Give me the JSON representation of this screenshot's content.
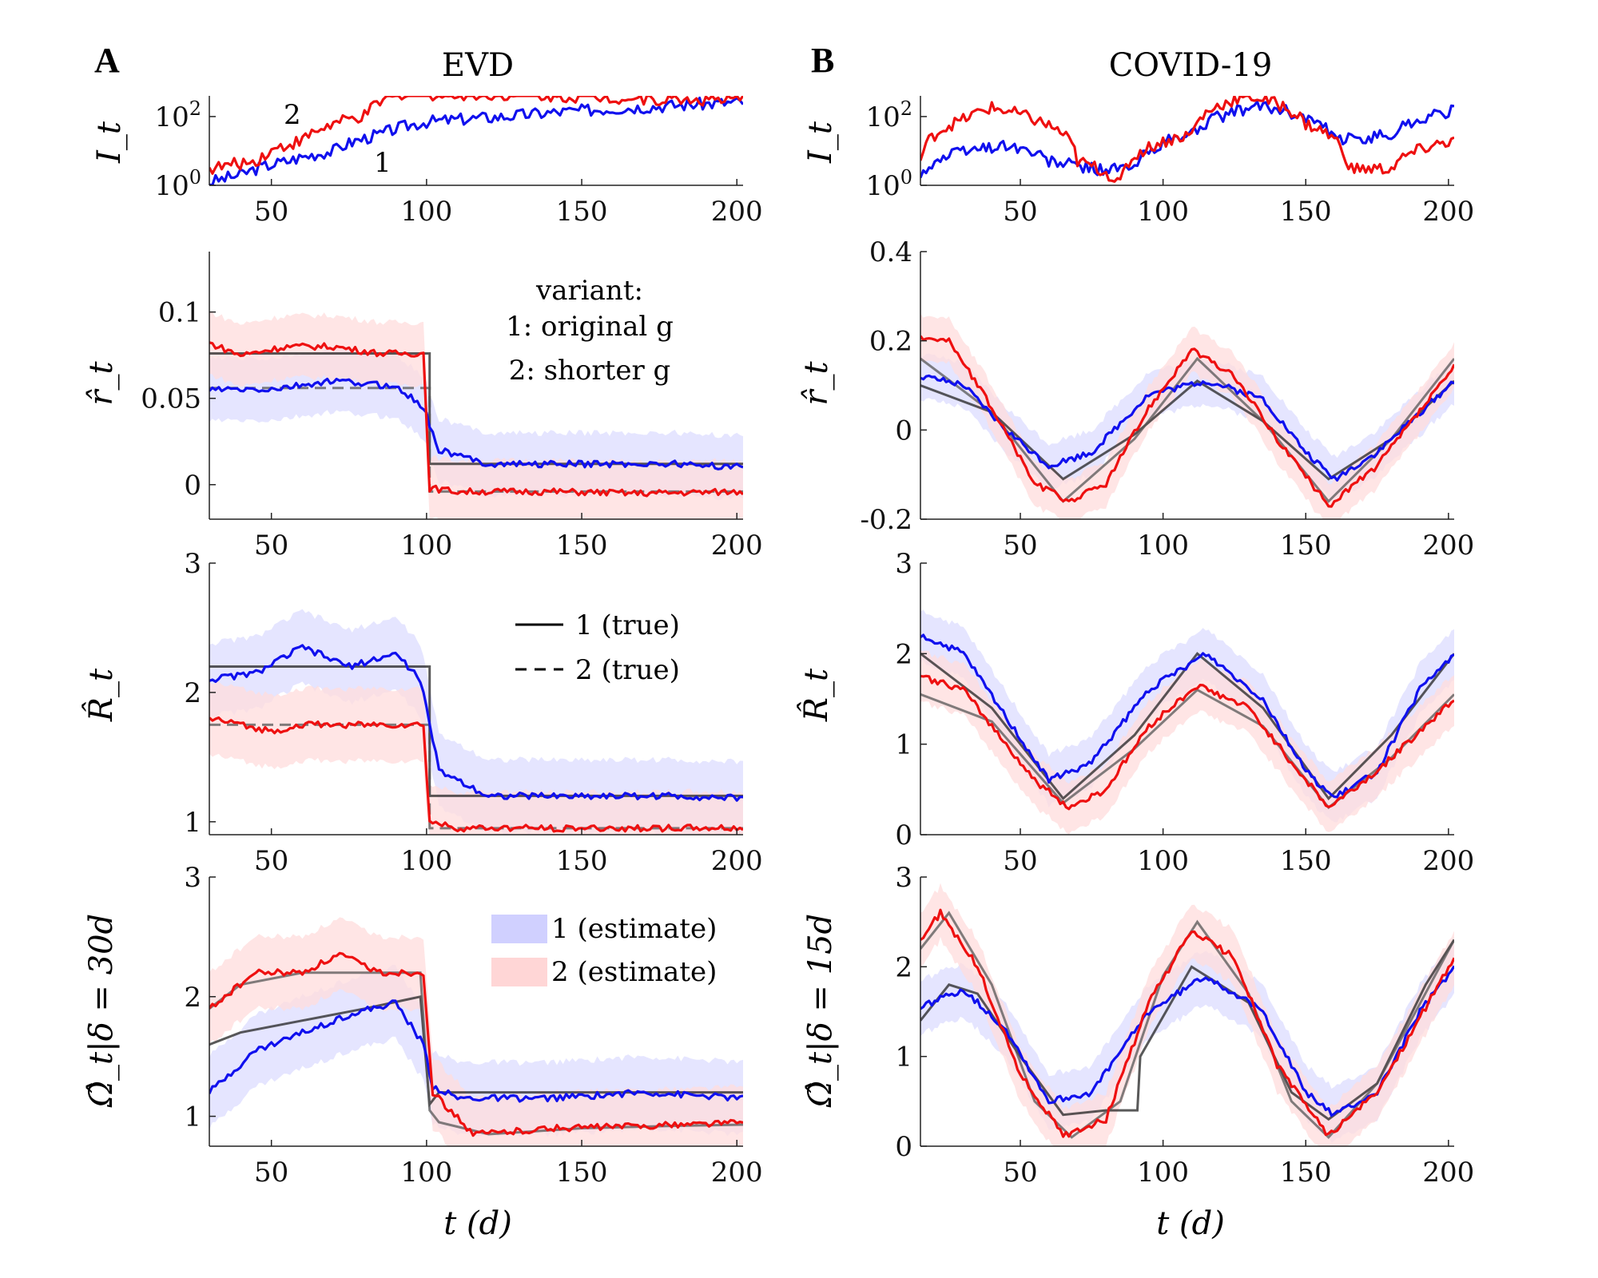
{
  "colors": {
    "series1": "#1010ee",
    "series2": "#ee1010",
    "true_dark": "#222222",
    "band1": "#dcdcff",
    "band2": "#ffdcdc"
  },
  "figure": {
    "panel_a": "A",
    "panel_b": "B",
    "title_a": "EVD",
    "title_b": "COVID-19",
    "xlabel": "t (d)"
  },
  "ylabels": {
    "I": "I_t",
    "r": "r̂_t",
    "R": "R̂_t",
    "Omega_a": "Ω̂_t|δ = 30d",
    "Omega_b": "Ω̂_t|δ = 15d"
  },
  "annotations": {
    "label1": "1",
    "label2": "2"
  },
  "legend_variant": {
    "title": "variant:",
    "item1": "1: original g",
    "item2": "2: shorter g"
  },
  "legend_true": {
    "item1": "1 (true)",
    "item2": "2 (true)"
  },
  "legend_estimate": {
    "item1": "1 (estimate)",
    "item2": "2 (estimate)"
  },
  "chart_data": [
    {
      "id": "A_I",
      "type": "line",
      "ylabel": "I_t",
      "yscale": "log",
      "xlim": [
        30,
        202
      ],
      "ylim": [
        1,
        400
      ],
      "xticks": [
        50,
        100,
        150,
        200
      ],
      "yticks": [
        "10^0",
        "10^2"
      ],
      "series": [
        {
          "name": "1",
          "x": [
            30,
            40,
            55,
            70,
            85,
            100,
            125,
            150,
            175,
            200
          ],
          "y": [
            1.2,
            2,
            5,
            10,
            30,
            70,
            100,
            150,
            200,
            260
          ]
        },
        {
          "name": "2",
          "x": [
            30,
            45,
            60,
            80,
            100,
            101,
            125,
            150,
            175,
            200
          ],
          "y": [
            3,
            5,
            20,
            100,
            700,
            450,
            450,
            380,
            320,
            300
          ]
        }
      ]
    },
    {
      "id": "A_r",
      "type": "line",
      "ylabel": "r̂_t",
      "xlim": [
        30,
        202
      ],
      "ylim": [
        -0.02,
        0.135
      ],
      "xticks": [
        50,
        100,
        150,
        200
      ],
      "yticks": [
        0,
        0.05,
        0.1
      ],
      "true": [
        {
          "name": "1 (true)",
          "x": [
            30,
            101,
            101,
            202
          ],
          "y": [
            0.076,
            0.076,
            0.012,
            0.012
          ]
        },
        {
          "name": "2 (true)",
          "x": [
            30,
            101,
            101,
            202
          ],
          "y": [
            0.056,
            0.056,
            -0.004,
            -0.004
          ]
        }
      ],
      "series": [
        {
          "name": "1",
          "x": [
            30,
            50,
            70,
            90,
            99,
            104,
            120,
            150,
            180,
            202
          ],
          "y": [
            0.055,
            0.055,
            0.06,
            0.057,
            0.045,
            0.02,
            0.012,
            0.012,
            0.012,
            0.01
          ]
        },
        {
          "name": "2",
          "x": [
            30,
            40,
            55,
            70,
            85,
            99,
            101,
            110,
            140,
            170,
            202
          ],
          "y": [
            0.082,
            0.075,
            0.08,
            0.08,
            0.076,
            0.076,
            -0.002,
            -0.004,
            -0.004,
            -0.005,
            -0.004
          ]
        }
      ]
    },
    {
      "id": "A_R",
      "type": "line",
      "ylabel": "R̂_t",
      "xlim": [
        30,
        202
      ],
      "ylim": [
        0.9,
        3.0
      ],
      "xticks": [
        50,
        100,
        150,
        200
      ],
      "yticks": [
        1,
        2,
        3
      ],
      "true": [
        {
          "name": "1 (true)",
          "x": [
            30,
            101,
            101,
            202
          ],
          "y": [
            2.2,
            2.2,
            1.2,
            1.2
          ]
        },
        {
          "name": "2 (true)",
          "x": [
            30,
            101,
            101,
            202
          ],
          "y": [
            1.75,
            1.75,
            0.95,
            0.95
          ]
        }
      ],
      "series": [
        {
          "name": "1",
          "x": [
            30,
            45,
            60,
            75,
            90,
            98,
            104,
            120,
            150,
            180,
            202
          ],
          "y": [
            2.1,
            2.15,
            2.35,
            2.2,
            2.3,
            2.1,
            1.4,
            1.2,
            1.2,
            1.2,
            1.18
          ]
        },
        {
          "name": "2",
          "x": [
            30,
            50,
            60,
            80,
            99,
            101,
            110,
            140,
            170,
            202
          ],
          "y": [
            1.8,
            1.7,
            1.75,
            1.75,
            1.75,
            1.0,
            0.95,
            0.95,
            0.95,
            0.95
          ]
        }
      ]
    },
    {
      "id": "A_Omega",
      "type": "line",
      "ylabel": "Ω̂_t|δ = 30d",
      "xlim": [
        30,
        202
      ],
      "ylim": [
        0.75,
        3.0
      ],
      "xticks": [
        50,
        100,
        150,
        200
      ],
      "yticks": [
        1,
        2,
        3
      ],
      "true": [
        {
          "name": "1 (true)",
          "x": [
            30,
            40,
            60,
            80,
            98,
            101,
            104,
            120,
            150,
            180,
            202
          ],
          "y": [
            1.6,
            1.7,
            1.8,
            1.9,
            2.0,
            1.1,
            1.2,
            1.2,
            1.2,
            1.2,
            1.2
          ]
        },
        {
          "name": "2 (true)",
          "x": [
            30,
            40,
            60,
            80,
            98,
            101,
            104,
            120,
            150,
            180,
            202
          ],
          "y": [
            1.9,
            2.1,
            2.2,
            2.2,
            2.2,
            1.05,
            0.95,
            0.85,
            0.9,
            0.92,
            0.93
          ]
        }
      ],
      "series": [
        {
          "name": "1",
          "x": [
            30,
            45,
            60,
            75,
            90,
            99,
            102,
            110,
            140,
            170,
            202
          ],
          "y": [
            1.2,
            1.55,
            1.7,
            1.85,
            1.95,
            1.6,
            1.25,
            1.15,
            1.15,
            1.2,
            1.15
          ]
        },
        {
          "name": "2",
          "x": [
            30,
            45,
            60,
            72,
            85,
            99,
            102,
            115,
            140,
            170,
            202
          ],
          "y": [
            1.9,
            2.2,
            2.2,
            2.35,
            2.2,
            2.2,
            1.2,
            0.85,
            0.9,
            0.92,
            0.95
          ]
        }
      ]
    },
    {
      "id": "B_I",
      "type": "line",
      "ylabel": "I_t",
      "yscale": "log",
      "xlim": [
        15,
        202
      ],
      "ylim": [
        1,
        400
      ],
      "xticks": [
        50,
        100,
        150,
        200
      ],
      "yticks": [
        "10^0",
        "10^2"
      ],
      "series": [
        {
          "name": "1",
          "x": [
            15,
            30,
            45,
            60,
            75,
            90,
            110,
            135,
            160,
            180,
            202
          ],
          "y": [
            2,
            10,
            15,
            5,
            3,
            3,
            30,
            200,
            20,
            30,
            150
          ]
        },
        {
          "name": "2",
          "x": [
            15,
            30,
            40,
            55,
            70,
            85,
            110,
            130,
            150,
            165,
            180,
            202
          ],
          "y": [
            5,
            80,
            180,
            80,
            5,
            1,
            30,
            400,
            60,
            3,
            3,
            20
          ]
        }
      ]
    },
    {
      "id": "B_r",
      "type": "line",
      "ylabel": "r̂_t",
      "xlim": [
        15,
        202
      ],
      "ylim": [
        -0.2,
        0.4
      ],
      "xticks": [
        50,
        100,
        150,
        200
      ],
      "yticks": [
        -0.2,
        0,
        0.2,
        0.4
      ],
      "true": [
        {
          "name": "1 (true)",
          "x": [
            15,
            40,
            65,
            90,
            112,
            135,
            158,
            180,
            202
          ],
          "y": [
            0.1,
            0.04,
            -0.11,
            -0.01,
            0.11,
            0.02,
            -0.11,
            -0.02,
            0.11
          ]
        },
        {
          "name": "2 (true)",
          "x": [
            15,
            40,
            65,
            90,
            112,
            135,
            158,
            180,
            202
          ],
          "y": [
            0.16,
            0.04,
            -0.16,
            -0.02,
            0.16,
            0.02,
            -0.16,
            -0.02,
            0.16
          ]
        }
      ],
      "series": [
        {
          "name": "1",
          "x": [
            15,
            30,
            45,
            60,
            75,
            95,
            115,
            135,
            150,
            160,
            175,
            202
          ],
          "y": [
            0.12,
            0.1,
            0.0,
            -0.08,
            -0.05,
            0.08,
            0.11,
            0.07,
            -0.05,
            -0.11,
            -0.05,
            0.11
          ]
        },
        {
          "name": "2",
          "x": [
            15,
            25,
            40,
            55,
            67,
            80,
            95,
            110,
            125,
            140,
            158,
            175,
            202
          ],
          "y": [
            0.21,
            0.2,
            0.05,
            -0.12,
            -0.16,
            -0.12,
            0.05,
            0.18,
            0.12,
            -0.02,
            -0.17,
            -0.08,
            0.14
          ]
        }
      ]
    },
    {
      "id": "B_R",
      "type": "line",
      "ylabel": "R̂_t",
      "xlim": [
        15,
        202
      ],
      "ylim": [
        0,
        3.0
      ],
      "xticks": [
        50,
        100,
        150,
        200
      ],
      "yticks": [
        0,
        1,
        2,
        3
      ],
      "true": [
        {
          "name": "1 (true)",
          "x": [
            15,
            40,
            65,
            90,
            112,
            135,
            158,
            180,
            202
          ],
          "y": [
            2.0,
            1.4,
            0.4,
            1.1,
            2.0,
            1.4,
            0.4,
            1.1,
            2.0
          ]
        },
        {
          "name": "2 (true)",
          "x": [
            15,
            40,
            65,
            90,
            112,
            135,
            158,
            180,
            202
          ],
          "y": [
            1.55,
            1.25,
            0.35,
            0.95,
            1.6,
            1.2,
            0.3,
            0.85,
            1.55
          ]
        }
      ],
      "series": [
        {
          "name": "1",
          "x": [
            15,
            30,
            45,
            60,
            75,
            95,
            115,
            135,
            150,
            160,
            175,
            190,
            202
          ],
          "y": [
            2.2,
            2.0,
            1.3,
            0.6,
            0.8,
            1.6,
            2.0,
            1.5,
            0.7,
            0.4,
            0.7,
            1.6,
            2.0
          ]
        },
        {
          "name": "2",
          "x": [
            15,
            30,
            45,
            55,
            67,
            80,
            95,
            112,
            130,
            145,
            158,
            175,
            202
          ],
          "y": [
            1.75,
            1.6,
            1.0,
            0.6,
            0.3,
            0.5,
            1.2,
            1.65,
            1.4,
            0.8,
            0.3,
            0.7,
            1.5
          ]
        }
      ]
    },
    {
      "id": "B_Omega",
      "type": "line",
      "ylabel": "Ω̂_t|δ = 15d",
      "xlim": [
        15,
        202
      ],
      "ylim": [
        0,
        3.0
      ],
      "xticks": [
        50,
        100,
        150,
        200
      ],
      "yticks": [
        0,
        1,
        2,
        3
      ],
      "true": [
        {
          "name": "1 (true)",
          "x": [
            15,
            25,
            35,
            50,
            65,
            80,
            91,
            92,
            110,
            130,
            145,
            158,
            175,
            192,
            202
          ],
          "y": [
            1.4,
            1.8,
            1.7,
            1.0,
            0.35,
            0.4,
            0.4,
            1.0,
            2.0,
            1.6,
            0.6,
            0.3,
            0.7,
            1.8,
            2.3
          ]
        },
        {
          "name": "2 (true)",
          "x": [
            15,
            25,
            40,
            55,
            68,
            85,
            100,
            112,
            130,
            145,
            158,
            175,
            202
          ],
          "y": [
            2.2,
            2.6,
            1.8,
            0.5,
            0.1,
            0.5,
            1.9,
            2.5,
            1.7,
            0.5,
            0.1,
            0.7,
            2.3
          ]
        }
      ],
      "series": [
        {
          "name": "1",
          "x": [
            15,
            30,
            45,
            60,
            75,
            95,
            115,
            135,
            150,
            160,
            175,
            190,
            202
          ],
          "y": [
            1.55,
            1.75,
            1.3,
            0.5,
            0.6,
            1.5,
            1.9,
            1.5,
            0.6,
            0.35,
            0.6,
            1.5,
            2.0
          ]
        },
        {
          "name": "2",
          "x": [
            15,
            22,
            35,
            50,
            65,
            80,
            95,
            110,
            125,
            140,
            158,
            175,
            202
          ],
          "y": [
            2.3,
            2.6,
            2.0,
            0.8,
            0.12,
            0.3,
            1.6,
            2.4,
            2.1,
            0.9,
            0.12,
            0.6,
            2.1
          ]
        }
      ]
    }
  ]
}
